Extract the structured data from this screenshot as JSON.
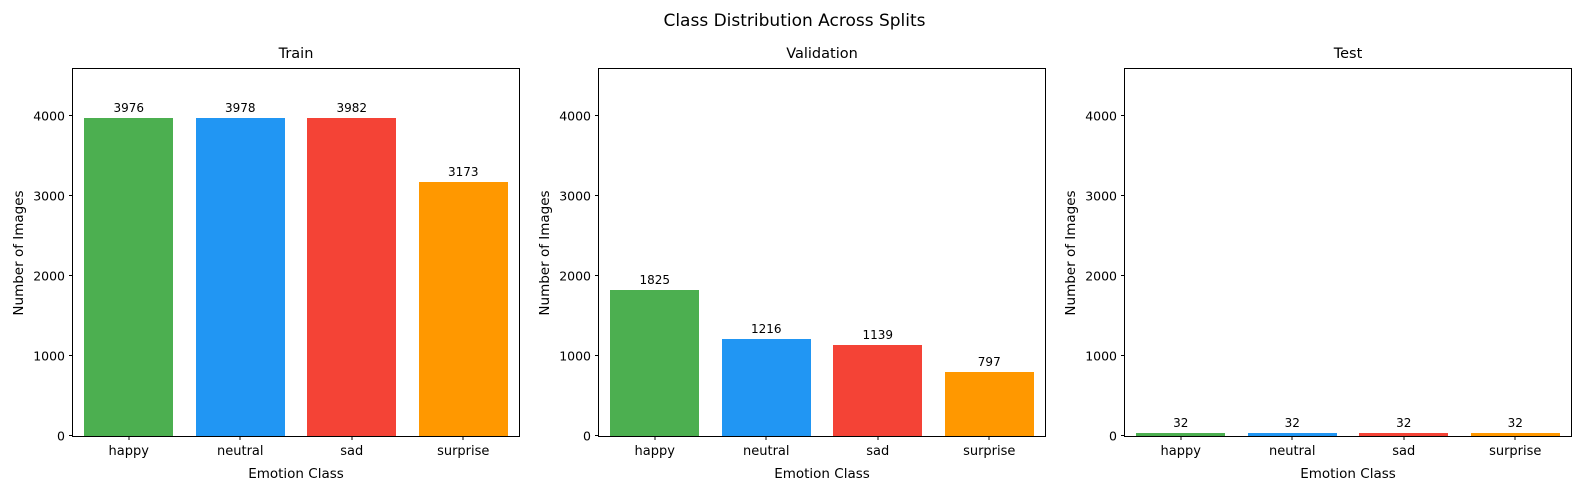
{
  "figure": {
    "title": "Class Distribution Across Splits",
    "background_color": "#ffffff"
  },
  "palette": {
    "happy": "#4CAF50",
    "neutral": "#2196F3",
    "sad": "#F44336",
    "surprise": "#FF9800"
  },
  "chart_data": [
    {
      "type": "bar",
      "title": "Train",
      "xlabel": "Emotion Class",
      "ylabel": "Number of Images",
      "categories": [
        "happy",
        "neutral",
        "sad",
        "surprise"
      ],
      "values": [
        3976,
        3978,
        3982,
        3173
      ],
      "bar_colors": [
        "#4CAF50",
        "#2196F3",
        "#F44336",
        "#FF9800"
      ],
      "yticks": [
        0,
        1000,
        2000,
        3000,
        4000
      ],
      "ylim": [
        0,
        4590
      ],
      "grid": false,
      "legend_position": "none"
    },
    {
      "type": "bar",
      "title": "Validation",
      "xlabel": "Emotion Class",
      "ylabel": "Number of Images",
      "categories": [
        "happy",
        "neutral",
        "sad",
        "surprise"
      ],
      "values": [
        1825,
        1216,
        1139,
        797
      ],
      "bar_colors": [
        "#4CAF50",
        "#2196F3",
        "#F44336",
        "#FF9800"
      ],
      "yticks": [
        0,
        1000,
        2000,
        3000,
        4000
      ],
      "ylim": [
        0,
        4590
      ],
      "grid": false,
      "legend_position": "none"
    },
    {
      "type": "bar",
      "title": "Test",
      "xlabel": "Emotion Class",
      "ylabel": "Number of Images",
      "categories": [
        "happy",
        "neutral",
        "sad",
        "surprise"
      ],
      "values": [
        32,
        32,
        32,
        32
      ],
      "bar_colors": [
        "#4CAF50",
        "#2196F3",
        "#F44336",
        "#FF9800"
      ],
      "yticks": [
        0,
        1000,
        2000,
        3000,
        4000
      ],
      "ylim": [
        0,
        4590
      ],
      "grid": false,
      "legend_position": "none"
    }
  ]
}
